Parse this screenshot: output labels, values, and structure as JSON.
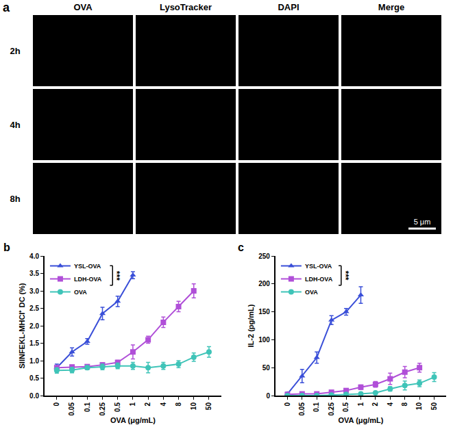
{
  "figure_panel_a": {
    "panel_label": "a",
    "columns": [
      "OVA",
      "LysoTracker",
      "DAPI",
      "Merge"
    ],
    "rows": [
      "2h",
      "4h",
      "8h"
    ],
    "scale_bar": "5 μm"
  },
  "chart_data": [
    {
      "panel_label": "b",
      "type": "line",
      "categories": [
        "0",
        "0.05",
        "0.1",
        "0.25",
        "0.5",
        "1",
        "2",
        "4",
        "8",
        "10",
        "50"
      ],
      "x_label": "OVA (μg/mL)",
      "y_label": "SIINFEKL-MHCI⁺ DC (%)",
      "ylim": [
        0,
        4
      ],
      "yticks": [
        {
          "value": 0,
          "label": "0.0"
        },
        {
          "value": 0.5,
          "label": "0.5"
        },
        {
          "value": 1,
          "label": "1.0"
        },
        {
          "value": 1.5,
          "label": "1.5"
        },
        {
          "value": 2,
          "label": "2.0"
        },
        {
          "value": 2.5,
          "label": "2.5"
        },
        {
          "value": 3,
          "label": "3.0"
        },
        {
          "value": 3.5,
          "label": "3.5"
        },
        {
          "value": 4,
          "label": "4.0"
        }
      ],
      "grid": false,
      "legend": "upper left",
      "annotations": [
        "***"
      ],
      "series": [
        {
          "name": "YSL-OVA",
          "color": "#3a4fd8",
          "marker": "triangle-up",
          "line_style": "solid",
          "values": [
            0.8,
            1.25,
            1.55,
            2.35,
            2.7,
            3.45,
            null,
            null,
            null,
            null,
            null
          ],
          "error": [
            0.1,
            0.12,
            0.08,
            0.18,
            0.15,
            0.1,
            null,
            null,
            null,
            null,
            null
          ]
        },
        {
          "name": "LDH-OVA",
          "color": "#b04fd8",
          "marker": "square",
          "line_style": "solid",
          "values": [
            0.8,
            0.82,
            0.83,
            0.88,
            0.95,
            1.25,
            1.6,
            2.1,
            2.55,
            3.0,
            null
          ],
          "error": [
            0.05,
            0.04,
            0.04,
            0.05,
            0.06,
            0.2,
            0.1,
            0.15,
            0.15,
            0.2,
            null
          ]
        },
        {
          "name": "OVA",
          "color": "#3fc4b8",
          "marker": "circle",
          "line_style": "solid",
          "values": [
            0.72,
            0.73,
            0.8,
            0.82,
            0.85,
            0.85,
            0.8,
            0.85,
            0.9,
            1.1,
            1.25
          ],
          "error": [
            0.08,
            0.08,
            0.06,
            0.08,
            0.08,
            0.1,
            0.15,
            0.1,
            0.1,
            0.12,
            0.15
          ]
        }
      ]
    },
    {
      "panel_label": "c",
      "type": "line",
      "categories": [
        "0",
        "0.05",
        "0.1",
        "0.25",
        "0.5",
        "1",
        "2",
        "4",
        "8",
        "10",
        "50"
      ],
      "x_label": "OVA (μg/mL)",
      "y_label": "IL-2 (pg/mL)",
      "ylim": [
        0,
        250
      ],
      "yticks": [
        0,
        50,
        100,
        150,
        200,
        250
      ],
      "grid": false,
      "legend": "upper left",
      "annotations": [
        "***"
      ],
      "series": [
        {
          "name": "YSL-OVA",
          "color": "#3a4fd8",
          "marker": "triangle-up",
          "line_style": "solid",
          "values": [
            3,
            35,
            68,
            135,
            150,
            180,
            null,
            null,
            null,
            null,
            null
          ],
          "error": [
            3,
            12,
            10,
            8,
            6,
            15,
            null,
            null,
            null,
            null,
            null
          ]
        },
        {
          "name": "LDH-OVA",
          "color": "#b04fd8",
          "marker": "square",
          "line_style": "solid",
          "values": [
            2,
            3,
            3,
            6,
            9,
            15,
            20,
            30,
            42,
            50,
            null
          ],
          "error": [
            2,
            2,
            2,
            3,
            3,
            4,
            5,
            10,
            10,
            8,
            null
          ]
        },
        {
          "name": "OVA",
          "color": "#3fc4b8",
          "marker": "circle",
          "line_style": "solid",
          "values": [
            0,
            0,
            0,
            1,
            2,
            3,
            5,
            12,
            18,
            22,
            33
          ],
          "error": [
            1,
            1,
            1,
            1,
            1,
            2,
            2,
            4,
            8,
            6,
            8
          ]
        }
      ]
    }
  ]
}
